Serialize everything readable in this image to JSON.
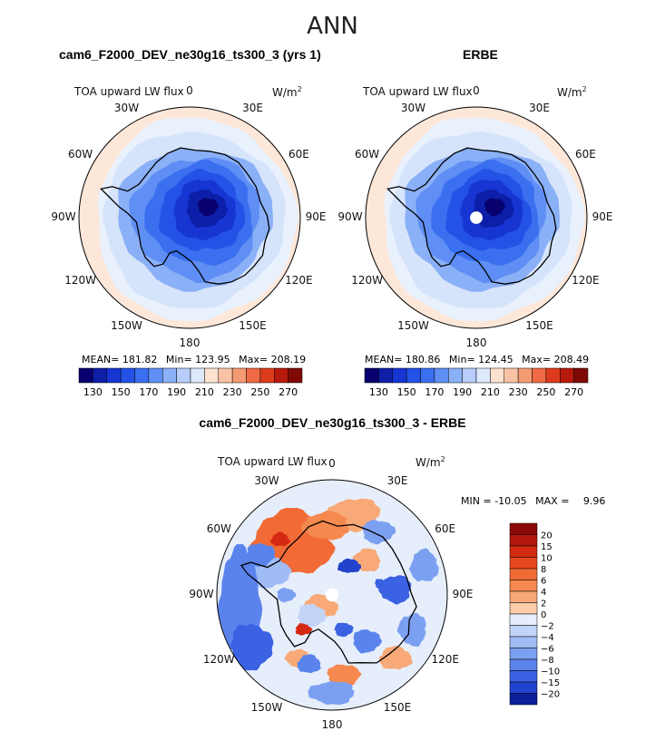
{
  "suptitle": "ANN",
  "colors": {
    "ocean_light": "#d6e4fb",
    "ocean_pale": "#e9f1fd",
    "warm_pale": "#fde7d9",
    "coast": "#000000"
  },
  "chart_data": [
    {
      "type": "heatmap",
      "projection": "south-polar-stereographic",
      "title": "cam6_F2000_DEV_ne30g16_ts300_3 (yrs 1)",
      "variable_label": "TOA upward LW flux",
      "units_label": "W/m",
      "units_exponent": "2",
      "longitude_labels": [
        "0",
        "30E",
        "60E",
        "90E",
        "120E",
        "150E",
        "180",
        "150W",
        "120W",
        "90W",
        "60W",
        "30W"
      ],
      "stats": {
        "mean_label": "MEAN=",
        "mean": "181.82",
        "min_label": "Min=",
        "min": "123.95",
        "max_label": "Max=",
        "max": "208.19"
      },
      "colorbar": {
        "levels": [
          130,
          140,
          150,
          160,
          170,
          180,
          190,
          200,
          210,
          220,
          230,
          240,
          250,
          260,
          270
        ],
        "tick_labels": [
          "130",
          "150",
          "170",
          "190",
          "210",
          "230",
          "250",
          "270"
        ],
        "colors": [
          "#08006f",
          "#0d1fa8",
          "#1635d3",
          "#2451e6",
          "#3a6ff0",
          "#5f8ef4",
          "#8ab0f7",
          "#b7cdfa",
          "#dde8fc",
          "#fde2d0",
          "#f9c2a4",
          "#f59b73",
          "#ef6a45",
          "#dd3c1c",
          "#b71a0c",
          "#7f0a05"
        ]
      },
      "has_polar_hole": false
    },
    {
      "type": "heatmap",
      "projection": "south-polar-stereographic",
      "title": "ERBE",
      "variable_label": "TOA upward LW flux",
      "units_label": "W/m",
      "units_exponent": "2",
      "longitude_labels": [
        "0",
        "30E",
        "60E",
        "90E",
        "120E",
        "150E",
        "180",
        "150W",
        "120W",
        "90W",
        "60W",
        "30W"
      ],
      "stats": {
        "mean_label": "MEAN=",
        "mean": "180.86",
        "min_label": "Min=",
        "min": "124.45",
        "max_label": "Max=",
        "max": "208.49"
      },
      "colorbar": {
        "levels": [
          130,
          140,
          150,
          160,
          170,
          180,
          190,
          200,
          210,
          220,
          230,
          240,
          250,
          260,
          270
        ],
        "tick_labels": [
          "130",
          "150",
          "170",
          "190",
          "210",
          "230",
          "250",
          "270"
        ],
        "colors": [
          "#08006f",
          "#0d1fa8",
          "#1635d3",
          "#2451e6",
          "#3a6ff0",
          "#5f8ef4",
          "#8ab0f7",
          "#b7cdfa",
          "#dde8fc",
          "#fde2d0",
          "#f9c2a4",
          "#f59b73",
          "#ef6a45",
          "#dd3c1c",
          "#b71a0c",
          "#7f0a05"
        ]
      },
      "has_polar_hole": true
    },
    {
      "type": "heatmap",
      "projection": "south-polar-stereographic",
      "title": "cam6_F2000_DEV_ne30g16_ts300_3 - ERBE",
      "variable_label": "TOA upward LW flux",
      "units_label": "W/m",
      "units_exponent": "2",
      "longitude_labels": [
        "0",
        "30E",
        "60E",
        "90E",
        "120E",
        "150E",
        "180",
        "150W",
        "120W",
        "90W",
        "60W",
        "30W"
      ],
      "stats": {
        "min_label": "MIN =",
        "min": "-10.05",
        "max_label": "MAX =",
        "max": "9.96"
      },
      "colorbar": {
        "orientation": "vertical",
        "levels": [
          20,
          15,
          10,
          8,
          6,
          4,
          2,
          0,
          -2,
          -4,
          -6,
          -8,
          -10,
          -15,
          -20
        ],
        "tick_labels": [
          "20",
          "15",
          "10",
          "8",
          "6",
          "4",
          "2",
          "0",
          "−2",
          "−4",
          "−6",
          "−8",
          "−10",
          "−15",
          "−20"
        ],
        "colors": [
          "#8b0a07",
          "#b3170d",
          "#d42a14",
          "#e8481f",
          "#f26a35",
          "#f5894f",
          "#f8a977",
          "#fbcbaa",
          "#e6eefb",
          "#c2d5f8",
          "#9fbcf5",
          "#7ca0f1",
          "#5a83ec",
          "#3b62e3",
          "#2142cd",
          "#0a1f9b"
        ]
      },
      "has_polar_hole": true
    }
  ]
}
